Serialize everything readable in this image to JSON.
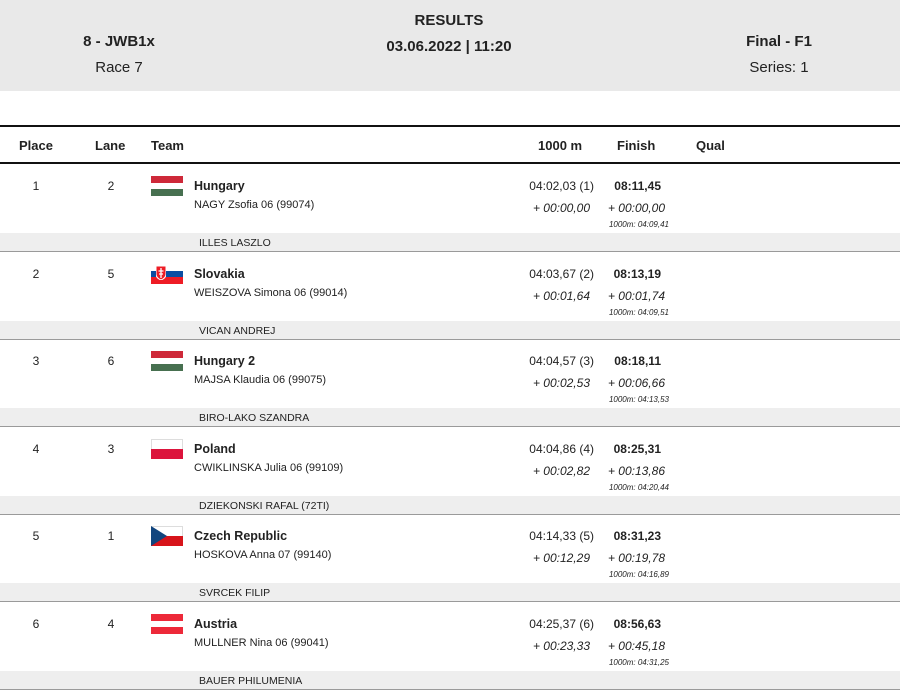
{
  "header": {
    "event": "8 - JWB1x",
    "race": "Race 7",
    "title": "RESULTS",
    "datetime": "03.06.2022 | 11:20",
    "final": "Final - F1",
    "series": "Series: 1"
  },
  "columns": {
    "place": "Place",
    "lane": "Lane",
    "team": "Team",
    "split": "1000 m",
    "finish": "Finish",
    "qual": "Qual"
  },
  "rows": [
    {
      "place": "1",
      "lane": "2",
      "flag": "flag-hungary",
      "country": "Hungary",
      "athlete": "NAGY  Zsofia 06 (99074)",
      "split": "04:02,03 (1)",
      "split_diff": "+ 00:00,00",
      "finish": "08:11,45",
      "finish_diff": "+ 00:00,00",
      "intermediate": "1000m: 04:09,41",
      "coach": "ILLES LASZLO"
    },
    {
      "place": "2",
      "lane": "5",
      "flag": "flag-slovakia",
      "country": "Slovakia",
      "athlete": "WEISZOVA  Simona 06 (99014)",
      "split": "04:03,67 (2)",
      "split_diff": "+ 00:01,64",
      "finish": "08:13,19",
      "finish_diff": "+ 00:01,74",
      "intermediate": "1000m: 04:09,51",
      "coach": "VICAN ANDREJ"
    },
    {
      "place": "3",
      "lane": "6",
      "flag": "flag-hungary",
      "country": "Hungary 2",
      "athlete": "MAJSA  Klaudia 06 (99075)",
      "split": "04:04,57 (3)",
      "split_diff": "+ 00:02,53",
      "finish": "08:18,11",
      "finish_diff": "+ 00:06,66",
      "intermediate": "1000m: 04:13,53",
      "coach": "BIRO-LAKO SZANDRA"
    },
    {
      "place": "4",
      "lane": "3",
      "flag": "flag-poland",
      "country": "Poland",
      "athlete": "CWIKLINSKA  Julia 06 (99109)",
      "split": "04:04,86 (4)",
      "split_diff": "+ 00:02,82",
      "finish": "08:25,31",
      "finish_diff": "+ 00:13,86",
      "intermediate": "1000m: 04:20,44",
      "coach": "DZIEKONSKI RAFAL (72TI)"
    },
    {
      "place": "5",
      "lane": "1",
      "flag": "flag-czech",
      "country": "Czech Republic",
      "athlete": "HOSKOVA  Anna 07 (99140)",
      "split": "04:14,33 (5)",
      "split_diff": "+ 00:12,29",
      "finish": "08:31,23",
      "finish_diff": "+ 00:19,78",
      "intermediate": "1000m: 04:16,89",
      "coach": "SVRCEK FILIP"
    },
    {
      "place": "6",
      "lane": "4",
      "flag": "flag-austria",
      "country": "Austria",
      "athlete": "MULLNER  Nina 06 (99041)",
      "split": "04:25,37 (6)",
      "split_diff": "+ 00:23,33",
      "finish": "08:56,63",
      "finish_diff": "+ 00:45,18",
      "intermediate": "1000m: 04:31,25",
      "coach": "BAUER PHILUMENIA"
    }
  ]
}
